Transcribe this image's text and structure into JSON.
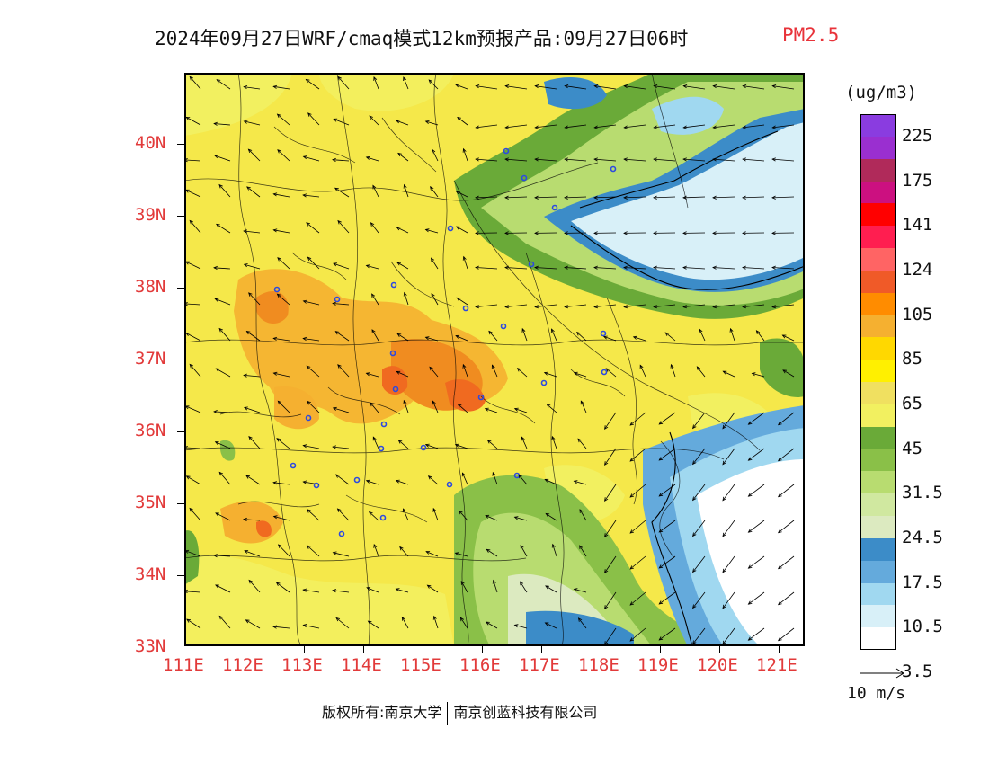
{
  "title": {
    "main": "2024年09月27日WRF/cmaq模式12km预报产品:09月27日06时",
    "variable": "PM2.5"
  },
  "map": {
    "projection": "lat-lon",
    "lon_range": [
      111,
      121.5
    ],
    "lat_range": [
      33,
      41
    ],
    "lat_ticks": [
      "33N",
      "34N",
      "35N",
      "36N",
      "37N",
      "38N",
      "39N",
      "40N"
    ],
    "lon_ticks": [
      "111E",
      "112E",
      "113E",
      "114E",
      "115E",
      "116E",
      "117E",
      "118E",
      "119E",
      "120E",
      "121E"
    ],
    "land_fill": "#f5e84a"
  },
  "legend": {
    "units": "(ug/m3)",
    "labels": [
      "225",
      "175",
      "141",
      "124",
      "105",
      "85",
      "65",
      "45",
      "31.5",
      "24.5",
      "17.5",
      "10.5",
      "3.5"
    ],
    "colors": [
      "#8a3ce0",
      "#9a2fd0",
      "#b02a5a",
      "#cc1080",
      "#ff0000",
      "#ff1e50",
      "#ff6464",
      "#f05a28",
      "#ff8c00",
      "#f5b030",
      "#ffd800",
      "#fff000",
      "#f0e060",
      "#f2f060",
      "#6aaa38",
      "#8ac048",
      "#b8dc70",
      "#d0e8a0",
      "#dceac0",
      "#3c8cc8",
      "#64aadc",
      "#a0d8f0",
      "#d8f0f8",
      "#ffffff"
    ]
  },
  "wind": {
    "reference_label": "10 m/s"
  },
  "footer": {
    "left": "版权所有:南京大学",
    "right": "南京创蓝科技有限公司"
  }
}
